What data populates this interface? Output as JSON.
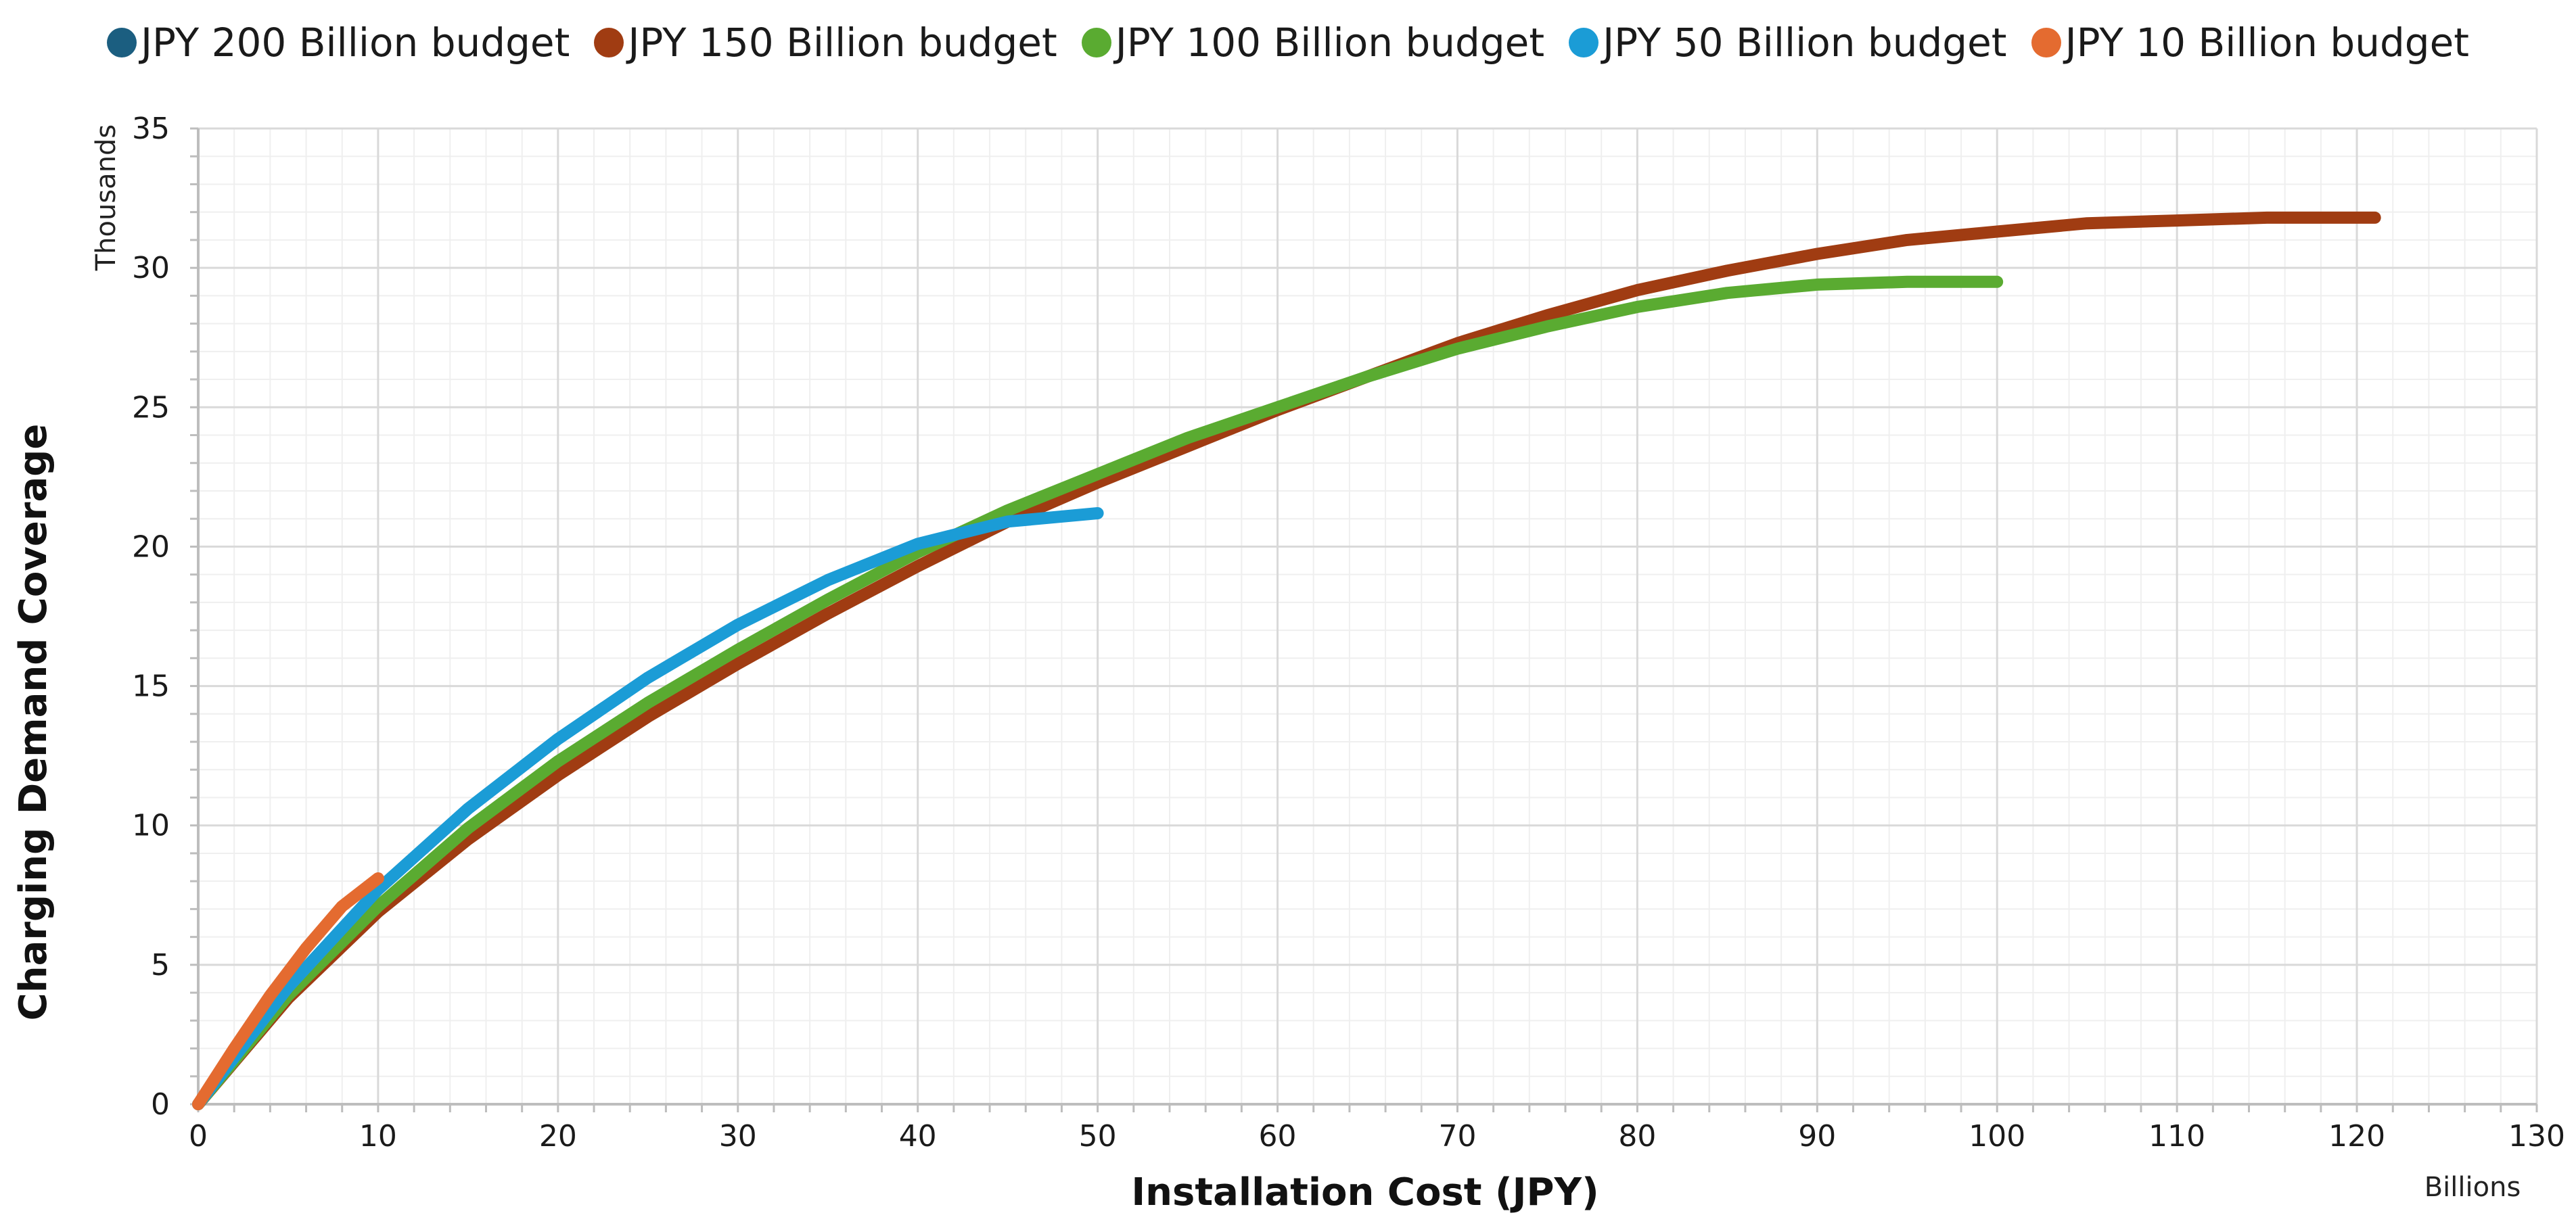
{
  "chart_data": {
    "type": "line",
    "title": "",
    "xlabel": "Installation Cost (JPY)",
    "ylabel": "Charging Demand Coverage",
    "x_unit_label": "Billions",
    "y_unit_label": "Thousands",
    "xlim": [
      0,
      130
    ],
    "ylim": [
      0,
      35
    ],
    "x_ticks": [
      "0",
      "10",
      "20",
      "30",
      "40",
      "50",
      "60",
      "70",
      "80",
      "90",
      "100",
      "110",
      "120",
      "130"
    ],
    "y_ticks": [
      "0",
      "5",
      "10",
      "15",
      "20",
      "25",
      "30",
      "35"
    ],
    "grid": true,
    "legend_position": "top-center",
    "series": [
      {
        "name": "JPY 200 Billion budget",
        "color": "#1b5e80",
        "x": [],
        "y": []
      },
      {
        "name": "JPY 150 Billion budget",
        "color": "#a03c12",
        "x": [
          0,
          5,
          10,
          15,
          20,
          25,
          30,
          35,
          40,
          45,
          50,
          55,
          60,
          65,
          70,
          75,
          80,
          85,
          90,
          95,
          100,
          105,
          110,
          115,
          121
        ],
        "y": [
          0,
          3.8,
          6.9,
          9.5,
          11.8,
          13.9,
          15.8,
          17.6,
          19.3,
          20.9,
          22.3,
          23.6,
          24.9,
          26.1,
          27.3,
          28.3,
          29.2,
          29.9,
          30.5,
          31.0,
          31.3,
          31.6,
          31.7,
          31.8,
          31.8
        ]
      },
      {
        "name": "JPY 100 Billion budget",
        "color": "#5aab31",
        "x": [
          0,
          5,
          10,
          15,
          20,
          25,
          30,
          35,
          40,
          45,
          50,
          55,
          60,
          65,
          70,
          75,
          80,
          85,
          90,
          95,
          100
        ],
        "y": [
          0,
          3.9,
          7.1,
          9.9,
          12.3,
          14.4,
          16.3,
          18.1,
          19.8,
          21.3,
          22.6,
          23.9,
          25.0,
          26.1,
          27.1,
          27.9,
          28.6,
          29.1,
          29.4,
          29.5,
          29.5
        ]
      },
      {
        "name": "JPY 50 Billion budget",
        "color": "#1b9cd6",
        "x": [
          0,
          5,
          10,
          15,
          20,
          25,
          30,
          35,
          40,
          45,
          50
        ],
        "y": [
          0,
          4.2,
          7.7,
          10.6,
          13.1,
          15.3,
          17.2,
          18.8,
          20.1,
          20.9,
          21.2
        ]
      },
      {
        "name": "JPY 10 Billion budget",
        "color": "#e46b30",
        "x": [
          0,
          2,
          4,
          6,
          8,
          10
        ],
        "y": [
          0,
          2.0,
          3.9,
          5.6,
          7.1,
          8.1
        ]
      }
    ]
  }
}
